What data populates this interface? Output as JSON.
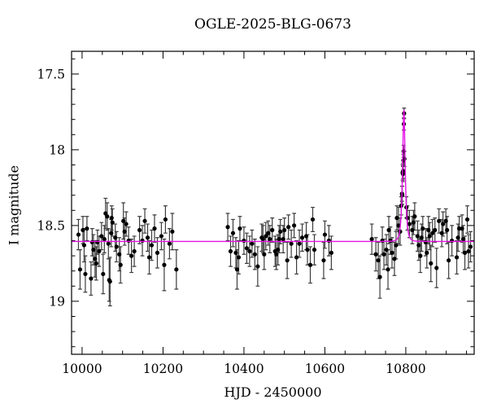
{
  "figure": {
    "title": "OGLE-2025-BLG-0673",
    "xlabel": "HJD - 2450000",
    "ylabel": "I magnitude"
  },
  "chart_data": {
    "type": "scatter",
    "title": "OGLE-2025-BLG-0673",
    "xlabel": "HJD - 2450000",
    "ylabel": "I magnitude",
    "grid": false,
    "y_axis_inverted": true,
    "xlim": [
      9974,
      10969
    ],
    "ylim": [
      17.35,
      19.35
    ],
    "x_major_ticks": [
      10000,
      10200,
      10400,
      10600,
      10800
    ],
    "x_minor_step": 50,
    "y_major_ticks": [
      17.5,
      18,
      18.5,
      19
    ],
    "y_minor_step": 0.1,
    "marker_color": "#000000",
    "errorbar_color": "#3c3c3c",
    "model_color": "#e513e5",
    "frame_color": "#000000",
    "model": {
      "name": "paczynski-microlensing-fit",
      "t0": 10795.3,
      "tE": 5.5,
      "u0": 0.49,
      "I0": 18.605
    },
    "points": [
      [
        9991,
        18.56,
        0.1
      ],
      [
        9995,
        18.79,
        0.13
      ],
      [
        10002,
        18.53,
        0.09
      ],
      [
        10005,
        18.63,
        0.11
      ],
      [
        10008,
        18.82,
        0.12
      ],
      [
        10012,
        18.52,
        0.08
      ],
      [
        10022,
        18.85,
        0.11
      ],
      [
        10025,
        18.61,
        0.09
      ],
      [
        10028,
        18.66,
        0.1
      ],
      [
        10032,
        18.72,
        0.12
      ],
      [
        10035,
        18.75,
        0.11
      ],
      [
        10038,
        18.61,
        0.08
      ],
      [
        10042,
        18.67,
        0.1
      ],
      [
        10048,
        18.57,
        0.09
      ],
      [
        10052,
        18.82,
        0.13
      ],
      [
        10055,
        18.59,
        0.09
      ],
      [
        10058,
        18.42,
        0.1
      ],
      [
        10062,
        18.44,
        0.09
      ],
      [
        10065,
        18.62,
        0.1
      ],
      [
        10067,
        18.86,
        0.14
      ],
      [
        10069,
        18.87,
        0.16
      ],
      [
        10072,
        18.55,
        0.09
      ],
      [
        10073,
        18.45,
        0.08
      ],
      [
        10075,
        18.48,
        0.09
      ],
      [
        10082,
        18.58,
        0.09
      ],
      [
        10085,
        18.64,
        0.1
      ],
      [
        10092,
        18.69,
        0.11
      ],
      [
        10095,
        18.76,
        0.12
      ],
      [
        10102,
        18.47,
        0.12
      ],
      [
        10105,
        18.54,
        0.09
      ],
      [
        10109,
        18.49,
        0.08
      ],
      [
        10115,
        18.6,
        0.09
      ],
      [
        10122,
        18.7,
        0.11
      ],
      [
        10129,
        18.67,
        0.1
      ],
      [
        10142,
        18.53,
        0.09
      ],
      [
        10149,
        18.6,
        0.1
      ],
      [
        10155,
        18.47,
        0.08
      ],
      [
        10162,
        18.58,
        0.09
      ],
      [
        10166,
        18.71,
        0.11
      ],
      [
        10172,
        18.63,
        0.1
      ],
      [
        10179,
        18.52,
        0.09
      ],
      [
        10186,
        18.68,
        0.1
      ],
      [
        10196,
        18.57,
        0.09
      ],
      [
        10203,
        18.76,
        0.17
      ],
      [
        10206,
        18.46,
        0.09
      ],
      [
        10216,
        18.62,
        0.1
      ],
      [
        10223,
        18.54,
        0.12
      ],
      [
        10233,
        18.79,
        0.13
      ],
      [
        10360,
        18.51,
        0.09
      ],
      [
        10367,
        18.67,
        0.1
      ],
      [
        10373,
        18.55,
        0.09
      ],
      [
        10380,
        18.68,
        0.1
      ],
      [
        10383,
        18.79,
        0.13
      ],
      [
        10387,
        18.71,
        0.11
      ],
      [
        10390,
        18.52,
        0.08
      ],
      [
        10400,
        18.6,
        0.09
      ],
      [
        10407,
        18.65,
        0.1
      ],
      [
        10414,
        18.67,
        0.1
      ],
      [
        10420,
        18.62,
        0.09
      ],
      [
        10427,
        18.69,
        0.1
      ],
      [
        10434,
        18.77,
        0.13
      ],
      [
        10444,
        18.58,
        0.09
      ],
      [
        10447,
        18.59,
        0.09
      ],
      [
        10450,
        18.69,
        0.1
      ],
      [
        10454,
        18.57,
        0.09
      ],
      [
        10460,
        18.55,
        0.08
      ],
      [
        10464,
        18.59,
        0.09
      ],
      [
        10470,
        18.53,
        0.08
      ],
      [
        10477,
        18.67,
        0.1
      ],
      [
        10480,
        18.69,
        0.1
      ],
      [
        10484,
        18.66,
        0.1
      ],
      [
        10487,
        18.59,
        0.09
      ],
      [
        10490,
        18.54,
        0.08
      ],
      [
        10497,
        18.59,
        0.09
      ],
      [
        10500,
        18.53,
        0.08
      ],
      [
        10507,
        18.73,
        0.12
      ],
      [
        10510,
        18.51,
        0.08
      ],
      [
        10517,
        18.62,
        0.09
      ],
      [
        10524,
        18.5,
        0.08
      ],
      [
        10530,
        18.71,
        0.11
      ],
      [
        10537,
        18.62,
        0.09
      ],
      [
        10544,
        18.58,
        0.09
      ],
      [
        10554,
        18.57,
        0.09
      ],
      [
        10557,
        18.66,
        0.1
      ],
      [
        10564,
        18.76,
        0.12
      ],
      [
        10570,
        18.46,
        0.08
      ],
      [
        10574,
        18.66,
        0.1
      ],
      [
        10597,
        18.73,
        0.12
      ],
      [
        10600,
        18.56,
        0.09
      ],
      [
        10610,
        18.6,
        0.1
      ],
      [
        10616,
        18.68,
        0.11
      ],
      [
        10716,
        18.59,
        0.1
      ],
      [
        10726,
        18.69,
        0.11
      ],
      [
        10732,
        18.73,
        0.12
      ],
      [
        10736,
        18.84,
        0.14
      ],
      [
        10742,
        18.6,
        0.09
      ],
      [
        10746,
        18.69,
        0.1
      ],
      [
        10752,
        18.66,
        0.1
      ],
      [
        10756,
        18.79,
        0.13
      ],
      [
        10758,
        18.53,
        0.09
      ],
      [
        10762,
        18.6,
        0.09
      ],
      [
        10766,
        18.68,
        0.1
      ],
      [
        10772,
        18.72,
        0.11
      ],
      [
        10776,
        18.63,
        0.09
      ],
      [
        10778,
        18.45,
        0.08
      ],
      [
        10782,
        18.5,
        0.12
      ],
      [
        10786,
        18.54,
        0.09
      ],
      [
        10788.5,
        18.37,
        0.06
      ],
      [
        10790.6,
        18.29,
        0.05
      ],
      [
        10791.4,
        18.3,
        0.06
      ],
      [
        10792.2,
        18.15,
        0.05
      ],
      [
        10792.9,
        18.16,
        0.05
      ],
      [
        10793.5,
        18.14,
        0.05
      ],
      [
        10794.1,
        18.07,
        0.04
      ],
      [
        10794.6,
        18.01,
        0.04
      ],
      [
        10795.2,
        17.83,
        0.04
      ],
      [
        10795.8,
        17.76,
        0.035
      ],
      [
        10796.6,
        18.06,
        0.05
      ],
      [
        10801.5,
        18.38,
        0.07
      ],
      [
        10804,
        18.45,
        0.08
      ],
      [
        10809,
        18.49,
        0.09
      ],
      [
        10816,
        18.53,
        0.09
      ],
      [
        10819,
        18.48,
        0.08
      ],
      [
        10822,
        18.44,
        0.09
      ],
      [
        10829,
        18.57,
        0.1
      ],
      [
        10832,
        18.63,
        0.1
      ],
      [
        10836,
        18.7,
        0.11
      ],
      [
        10839,
        18.58,
        0.09
      ],
      [
        10842,
        18.52,
        0.08
      ],
      [
        10849,
        18.61,
        0.09
      ],
      [
        10852,
        18.68,
        0.1
      ],
      [
        10856,
        18.53,
        0.09
      ],
      [
        10859,
        18.57,
        0.09
      ],
      [
        10862,
        18.75,
        0.12
      ],
      [
        10866,
        18.55,
        0.09
      ],
      [
        10872,
        18.53,
        0.08
      ],
      [
        10876,
        18.78,
        0.13
      ],
      [
        10882,
        18.47,
        0.08
      ],
      [
        10889,
        18.55,
        0.09
      ],
      [
        10892,
        18.49,
        0.08
      ],
      [
        10899,
        18.47,
        0.08
      ],
      [
        10902,
        18.53,
        0.09
      ],
      [
        10906,
        18.73,
        0.12
      ],
      [
        10914,
        18.6,
        0.1
      ],
      [
        10926,
        18.71,
        0.11
      ],
      [
        10929,
        18.58,
        0.09
      ],
      [
        10932,
        18.52,
        0.08
      ],
      [
        10939,
        18.52,
        0.09
      ],
      [
        10942,
        18.59,
        0.09
      ],
      [
        10946,
        18.68,
        0.11
      ],
      [
        10952,
        18.46,
        0.09
      ],
      [
        10955,
        18.67,
        0.11
      ],
      [
        10960,
        18.64,
        0.1
      ]
    ]
  }
}
